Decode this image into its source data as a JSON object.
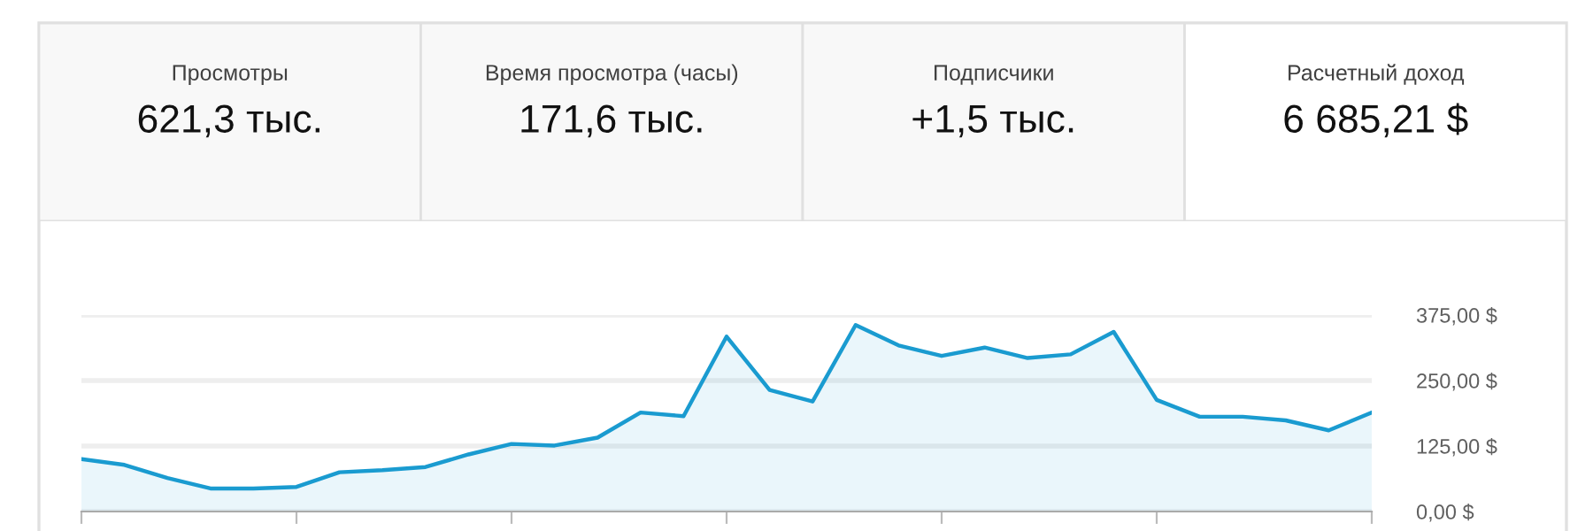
{
  "chart_data": [
    {
      "type": "other",
      "annotations": [
        "Просмотры",
        "621,3 тыс.",
        "Время просмотра (часы)",
        "171,6 тыс.",
        "Подписчики",
        "+1,5 тыс.",
        "Расчетный доход",
        "6 685,21 $"
      ]
    },
    {
      "type": "area",
      "categories": [
        null,
        null,
        null,
        null,
        null,
        null,
        null,
        null,
        null,
        null,
        null,
        null,
        null,
        null,
        null,
        null,
        null,
        null,
        null,
        null,
        null,
        null,
        null,
        null,
        null,
        null,
        null,
        null,
        null,
        null,
        null
      ],
      "series": [
        {
          "color": "#1a9bd0",
          "values": [
            100,
            89,
            64,
            44,
            44,
            47,
            75,
            79,
            85,
            109,
            129,
            126,
            141,
            189,
            182,
            334,
            232,
            210,
            356,
            317,
            297,
            313,
            293,
            300,
            343,
            213,
            181,
            181,
            174,
            155,
            189
          ]
        }
      ],
      "ylim": [
        0,
        375
      ],
      "yticks": [
        {
          "value": 0,
          "label": "0,00 $"
        },
        {
          "value": 125,
          "label": "125,00 $"
        },
        {
          "value": 250,
          "label": "250,00 $"
        },
        {
          "value": 375,
          "label": "375,00 $"
        }
      ],
      "grid": "y",
      "line_style": "solid"
    }
  ]
}
